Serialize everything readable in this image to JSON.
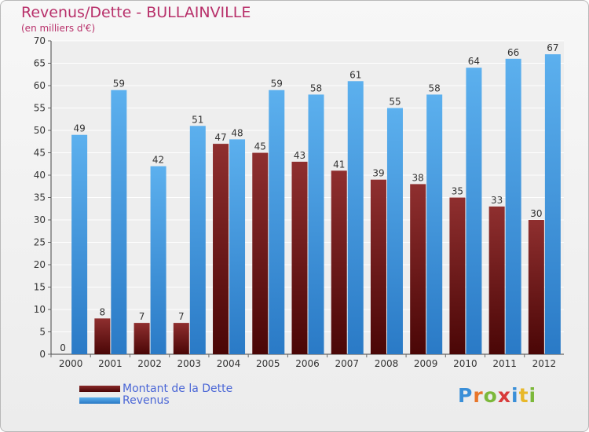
{
  "chart_data": {
    "type": "bar",
    "title": "Revenus/Dette - BULLAINVILLE",
    "subtitle": "(en milliers d'€)",
    "categories": [
      "2000",
      "2001",
      "2002",
      "2003",
      "2004",
      "2005",
      "2006",
      "2007",
      "2008",
      "2009",
      "2010",
      "2011",
      "2012"
    ],
    "series": [
      {
        "name": "Montant de la Dette",
        "color": "#7a1c1c",
        "values": [
          0,
          8,
          7,
          7,
          47,
          45,
          43,
          41,
          39,
          38,
          35,
          33,
          30
        ]
      },
      {
        "name": "Revenus",
        "color": "#4da3e6",
        "values": [
          49,
          59,
          42,
          51,
          48,
          59,
          58,
          61,
          55,
          58,
          64,
          66,
          67
        ]
      }
    ],
    "ylim": [
      0,
      70
    ],
    "yticks": [
      0,
      5,
      10,
      15,
      20,
      25,
      30,
      35,
      40,
      45,
      50,
      55,
      60,
      65,
      70
    ],
    "grid": true,
    "legend_position": "bottom-left"
  },
  "logo": {
    "letters": [
      "P",
      "r",
      "o",
      "x",
      "i",
      "t",
      "i"
    ],
    "colors": [
      "#3a8fd8",
      "#e8762a",
      "#7cb83a",
      "#d83a3a",
      "#3a8fd8",
      "#e8b82a",
      "#7cb83a"
    ]
  }
}
